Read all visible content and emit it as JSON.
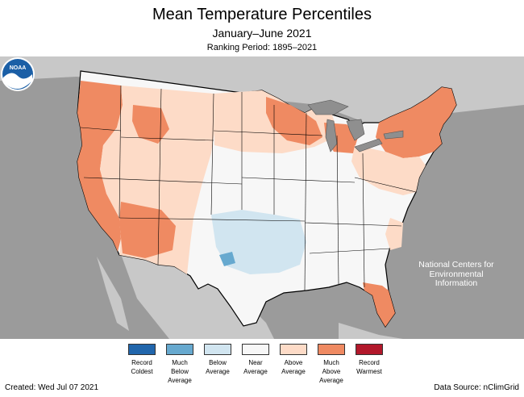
{
  "header": {
    "title": "Mean Temperature Percentiles",
    "subtitle": "January–June 2021",
    "ranking_period": "Ranking Period: 1895–2021"
  },
  "agency": {
    "logo_text": "NOAA",
    "label_line1": "National Centers for",
    "label_line2": "Environmental",
    "label_line3": "Information"
  },
  "legend": [
    {
      "line1": "Record",
      "line2": "Coldest",
      "line3": "",
      "color": "#2166ac"
    },
    {
      "line1": "Much",
      "line2": "Below",
      "line3": "Average",
      "color": "#67a9cf"
    },
    {
      "line1": "Below",
      "line2": "Average",
      "line3": "",
      "color": "#d1e5f0"
    },
    {
      "line1": "Near",
      "line2": "Average",
      "line3": "",
      "color": "#f7f7f7"
    },
    {
      "line1": "Above",
      "line2": "Average",
      "line3": "",
      "color": "#fddbc7"
    },
    {
      "line1": "Much",
      "line2": "Above",
      "line3": "Average",
      "color": "#ef8a62"
    },
    {
      "line1": "Record",
      "line2": "Warmest",
      "line3": "",
      "color": "#b2182b"
    }
  ],
  "footer": {
    "created": "Created: Wed Jul 07 2021",
    "source": "Data Source: nClimGrid"
  },
  "colors": {
    "background_land": "#bdbdbd",
    "water": "#8f8f8f",
    "state_border": "#000000"
  }
}
